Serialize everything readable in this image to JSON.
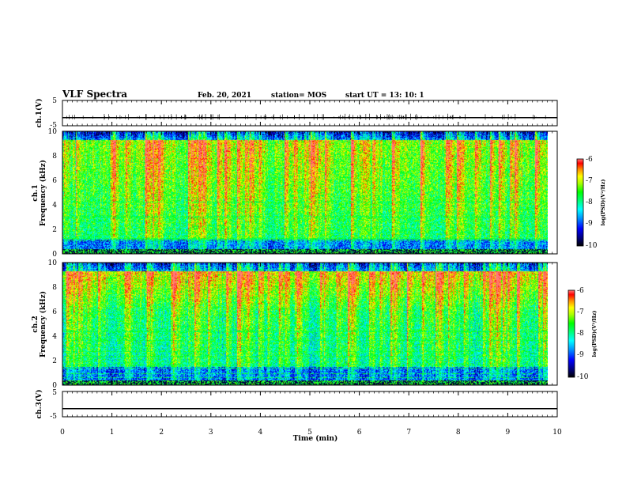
{
  "header": {
    "title": "VLF Spectra",
    "date": "Feb. 20, 2021",
    "station": "station= MOS",
    "start": "start  UT =   13: 10: 1"
  },
  "colors": {
    "spectrogram_scale": [
      "#000000",
      "#000080",
      "#0000ff",
      "#00a0ff",
      "#00ffff",
      "#00ff80",
      "#00ff00",
      "#80ff00",
      "#ffff00",
      "#ff8000",
      "#ff0000",
      "#ff5050"
    ]
  },
  "chart_data": [
    {
      "type": "line",
      "panel": "ch1-waveform",
      "ylabel": "ch.1(V)",
      "ylim": [
        -5,
        5
      ],
      "y_ticks": [
        "5",
        "-5"
      ],
      "x": [
        0,
        10
      ],
      "y": [
        -1.8,
        -1.8
      ]
    },
    {
      "type": "heatmap",
      "panel": "ch1-spectrogram",
      "ylabel_1": "ch.1",
      "ylabel_2": "Frequency (kHz)",
      "ylim": [
        0,
        10
      ],
      "xlim": [
        0,
        10
      ],
      "y_ticks": [
        "0",
        "2",
        "4",
        "6",
        "8",
        "10"
      ],
      "data_xlim": [
        0,
        9.85
      ],
      "colorbar": {
        "label": "log(PSD)(V²/Hz)",
        "range": [
          -10,
          -6
        ],
        "ticks": [
          "-6",
          "-7",
          "-8",
          "-9",
          "-10"
        ]
      }
    },
    {
      "type": "heatmap",
      "panel": "ch2-spectrogram",
      "ylabel_1": "ch.2",
      "ylabel_2": "Frequency (kHz)",
      "ylim": [
        0,
        10
      ],
      "xlim": [
        0,
        10
      ],
      "y_ticks": [
        "0",
        "2",
        "4",
        "6",
        "8",
        "10"
      ],
      "data_xlim": [
        0,
        9.85
      ],
      "colorbar": {
        "label": "log(PSD)(V²/Hz)",
        "range": [
          -10,
          -6
        ],
        "ticks": [
          "-6",
          "-7",
          "-8",
          "-9",
          "-10"
        ]
      }
    },
    {
      "type": "line",
      "panel": "ch3-waveform",
      "ylabel": "ch.3(V)",
      "ylim": [
        -5,
        5
      ],
      "y_ticks": [
        "5",
        "-5"
      ],
      "x": [
        0,
        10
      ],
      "y": [
        -1.8,
        -1.8
      ]
    }
  ],
  "x_axis": {
    "label": "Time (min)",
    "ticks": [
      "0",
      "1",
      "2",
      "3",
      "4",
      "5",
      "6",
      "7",
      "8",
      "9",
      "10"
    ]
  }
}
